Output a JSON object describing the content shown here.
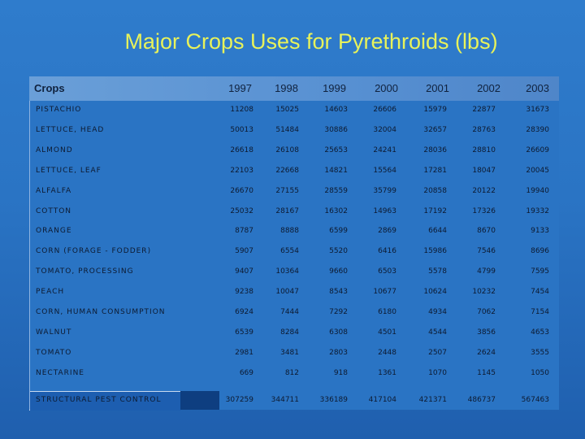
{
  "title": "Major Crops Uses for Pyrethroids (lbs)",
  "table": {
    "headers": [
      "Crops",
      "1997",
      "1998",
      "1999",
      "2000",
      "2001",
      "2002",
      "2003"
    ],
    "rows": [
      {
        "crop": "PISTACHIO",
        "values": [
          "11208",
          "15025",
          "14603",
          "26606",
          "15979",
          "22877",
          "31673"
        ]
      },
      {
        "crop": "LETTUCE, HEAD",
        "values": [
          "50013",
          "51484",
          "30886",
          "32004",
          "32657",
          "28763",
          "28390"
        ]
      },
      {
        "crop": "ALMOND",
        "values": [
          "26618",
          "26108",
          "25653",
          "24241",
          "28036",
          "28810",
          "26609"
        ]
      },
      {
        "crop": "LETTUCE, LEAF",
        "values": [
          "22103",
          "22668",
          "14821",
          "15564",
          "17281",
          "18047",
          "20045"
        ]
      },
      {
        "crop": "ALFALFA",
        "values": [
          "26670",
          "27155",
          "28559",
          "35799",
          "20858",
          "20122",
          "19940"
        ]
      },
      {
        "crop": "COTTON",
        "values": [
          "25032",
          "28167",
          "16302",
          "14963",
          "17192",
          "17326",
          "19332"
        ]
      },
      {
        "crop": "ORANGE",
        "values": [
          "8787",
          "8888",
          "6599",
          "2869",
          "6644",
          "8670",
          "9133"
        ]
      },
      {
        "crop": "CORN (FORAGE - FODDER)",
        "values": [
          "5907",
          "6554",
          "5520",
          "6416",
          "15986",
          "7546",
          "8696"
        ]
      },
      {
        "crop": "TOMATO, PROCESSING",
        "values": [
          "9407",
          "10364",
          "9660",
          "6503",
          "5578",
          "4799",
          "7595"
        ]
      },
      {
        "crop": "PEACH",
        "values": [
          "9238",
          "10047",
          "8543",
          "10677",
          "10624",
          "10232",
          "7454"
        ]
      },
      {
        "crop": "CORN, HUMAN CONSUMPTION",
        "values": [
          "6924",
          "7444",
          "7292",
          "6180",
          "4934",
          "7062",
          "7154"
        ]
      },
      {
        "crop": "WALNUT",
        "values": [
          "6539",
          "8284",
          "6308",
          "4501",
          "4544",
          "3856",
          "4653"
        ]
      },
      {
        "crop": "TOMATO",
        "values": [
          "2981",
          "3481",
          "2803",
          "2448",
          "2507",
          "2624",
          "3555"
        ]
      },
      {
        "crop": "NECTARINE",
        "values": [
          "669",
          "812",
          "918",
          "1361",
          "1070",
          "1145",
          "1050"
        ]
      }
    ],
    "total": {
      "crop": "STRUCTURAL PEST CONTROL",
      "values": [
        "307259",
        "344711",
        "336189",
        "417104",
        "421371",
        "486737",
        "567463"
      ]
    }
  }
}
